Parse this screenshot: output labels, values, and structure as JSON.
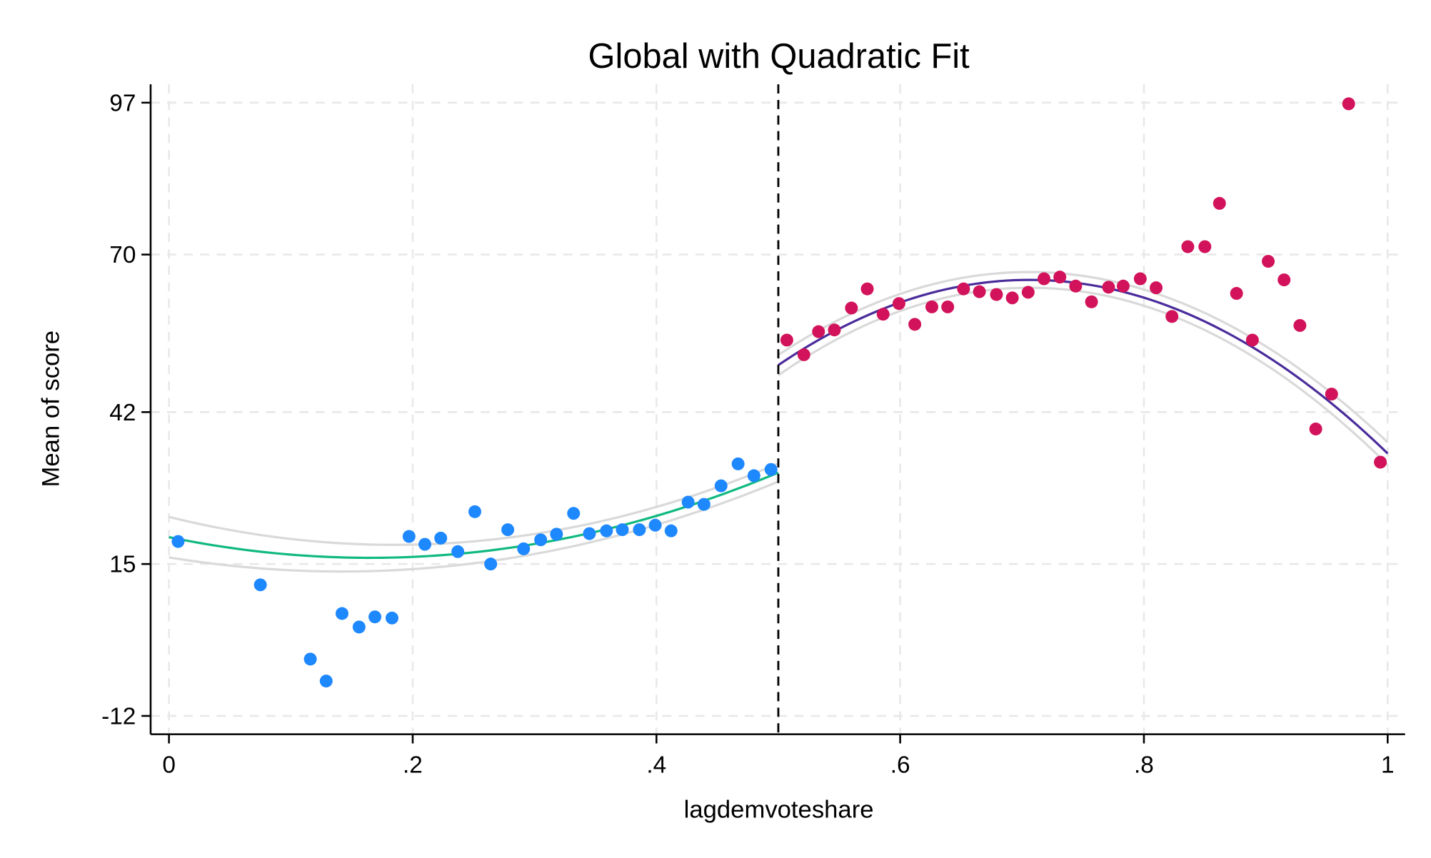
{
  "chart_data": {
    "type": "scatter",
    "title": "Global with Quadratic Fit",
    "xlabel": "lagdemvoteshare",
    "ylabel": "Mean of score",
    "xlim": [
      0,
      1
    ],
    "ylim": [
      -12,
      97
    ],
    "x_ticks": [
      0,
      0.2,
      0.4,
      0.6,
      0.8,
      1
    ],
    "x_tick_labels": [
      "0",
      ".2",
      ".4",
      ".6",
      ".8",
      "1"
    ],
    "y_ticks": [
      -12,
      15,
      42,
      70,
      97
    ],
    "y_tick_labels": [
      "-12",
      "15",
      "42",
      "70",
      "97"
    ],
    "grid": true,
    "cutoff": 0.5,
    "colors": {
      "left_points": "#1e88ff",
      "right_points": "#d2125a",
      "left_fit": "#10b981",
      "right_fit": "#4a2c9b",
      "ci": "#d9d9d9",
      "grid": "#e8e8e8"
    },
    "series": [
      {
        "side": "left",
        "x": [
          0.0075,
          0.075,
          0.116,
          0.129,
          0.142,
          0.156,
          0.169,
          0.183,
          0.197,
          0.21,
          0.223,
          0.237,
          0.251,
          0.264,
          0.278,
          0.291,
          0.305,
          0.318,
          0.332,
          0.345,
          0.359,
          0.372,
          0.386,
          0.399,
          0.412,
          0.426,
          0.439,
          0.453,
          0.467,
          0.48,
          0.494
        ],
        "y": [
          19.0,
          11.3,
          -1.9,
          -5.8,
          6.2,
          3.8,
          5.6,
          5.4,
          19.9,
          18.5,
          19.6,
          17.2,
          24.3,
          15.0,
          21.1,
          17.7,
          19.3,
          20.3,
          24.0,
          20.4,
          20.9,
          21.1,
          21.1,
          21.9,
          20.9,
          26.0,
          25.6,
          28.9,
          32.8,
          30.7,
          31.8
        ]
      },
      {
        "side": "right",
        "x": [
          0.507,
          0.521,
          0.533,
          0.546,
          0.56,
          0.573,
          0.586,
          0.599,
          0.612,
          0.626,
          0.639,
          0.652,
          0.665,
          0.679,
          0.692,
          0.705,
          0.718,
          0.731,
          0.744,
          0.757,
          0.771,
          0.783,
          0.797,
          0.81,
          0.823,
          0.836,
          0.85,
          0.862,
          0.876,
          0.889,
          0.902,
          0.915,
          0.928,
          0.941,
          0.954,
          0.968,
          0.994
        ],
        "y": [
          54.8,
          52.2,
          56.3,
          56.6,
          60.5,
          63.9,
          59.4,
          61.3,
          57.6,
          60.7,
          60.7,
          63.9,
          63.4,
          62.9,
          62.3,
          63.3,
          65.7,
          66.0,
          64.4,
          61.6,
          64.2,
          64.4,
          65.7,
          64.1,
          59.0,
          71.4,
          71.4,
          79.1,
          63.1,
          54.8,
          68.8,
          65.5,
          57.4,
          39.0,
          45.2,
          96.8,
          33.1
        ]
      }
    ],
    "fits": [
      {
        "side": "left",
        "type": "quadratic",
        "range": [
          0,
          0.5
        ],
        "vertex_x": 0.165,
        "vertex_y": 16.1,
        "curvature": 135,
        "ci_halfwidth": [
          3.6,
          1.3,
          1.6
        ]
      },
      {
        "side": "right",
        "type": "quadratic",
        "range": [
          0.5,
          1
        ],
        "vertex_x": 0.706,
        "vertex_y": 65.5,
        "curvature": -357,
        "ci_halfwidth": [
          1.8,
          0.9,
          2.0
        ]
      }
    ]
  }
}
